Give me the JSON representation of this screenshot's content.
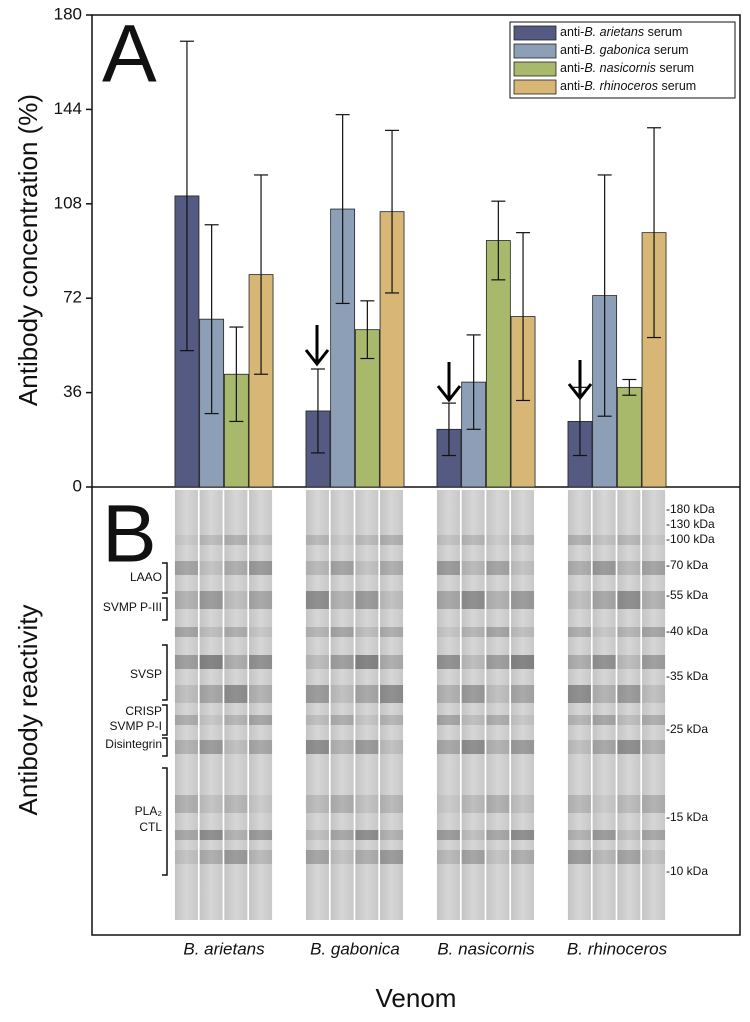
{
  "chart_data": {
    "type": "bar",
    "panel_letter": "A",
    "ylabel": "Antibody concentration (%)",
    "xlabel": "Venom",
    "categories": [
      "B. arietans",
      "B. gabonica",
      "B. nasicornis",
      "B. rhinoceros"
    ],
    "series": [
      {
        "name": "anti-B. arietans serum",
        "color": "#545a82",
        "values": [
          111,
          29,
          22,
          25
        ],
        "errors": [
          59,
          16,
          10,
          13
        ]
      },
      {
        "name": "anti-B. gabonica serum",
        "color": "#8d9fb6",
        "values": [
          64,
          106,
          40,
          73
        ],
        "errors": [
          36,
          36,
          18,
          46
        ]
      },
      {
        "name": "anti-B. nasicornis serum",
        "color": "#a9b96b",
        "values": [
          43,
          60,
          94,
          38
        ],
        "errors": [
          18,
          11,
          15,
          3
        ]
      },
      {
        "name": "anti-B. rhinoceros serum",
        "color": "#d7b676",
        "values": [
          81,
          105,
          65,
          97
        ],
        "errors": [
          38,
          31,
          32,
          40
        ]
      }
    ],
    "ylim": [
      0,
      180
    ],
    "yticks": [
      0,
      36,
      72,
      108,
      144,
      180
    ],
    "legend": "upper right",
    "error_bars": true
  },
  "blot": {
    "panel_letter": "B",
    "ylabel": "Antibody reactivity",
    "protein_labels": [
      "LAAO",
      "SVMP P-III",
      "SVSP",
      "CRISP",
      "SVMP P-I",
      "Disintegrin",
      "PLA₂",
      "CTL"
    ],
    "markers": [
      "-180 kDa",
      "-130 kDa",
      "-100 kDa",
      "-70 kDa",
      "-55 kDa",
      "-40 kDa",
      "-35 kDa",
      "-25 kDa",
      "-15 kDa",
      "-10 kDa"
    ]
  }
}
